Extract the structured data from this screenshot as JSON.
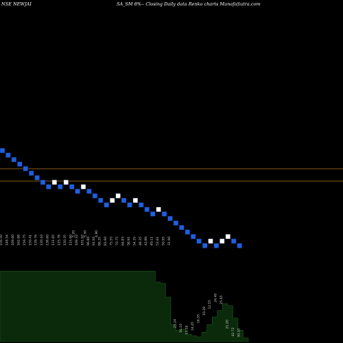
{
  "header": {
    "symbol": "NSE NEWJAI",
    "caption": "SA_SM 8%-- Closing Daily data Renko charts MunafaSutra.com"
  },
  "colors": {
    "background": "#000000",
    "up_brick": "#ffffff",
    "down_brick": "#1f5fe0",
    "brick_border": "#0a1a3a",
    "reference_line": "#8a5a10",
    "volume_fill": "#0b2a0b",
    "volume_edge": "#1a5a1a",
    "label": "#cfcfcf"
  },
  "chart_data": {
    "type": "renko",
    "title": "SA_SM 8%-- Closing Daily data Renko charts MunafaSutra.com",
    "bricks": [
      "down",
      "down",
      "down",
      "down",
      "down",
      "down",
      "down",
      "down",
      "down",
      "up",
      "down",
      "up",
      "down",
      "down",
      "up",
      "down",
      "down",
      "down",
      "down",
      "up",
      "up",
      "down",
      "down",
      "up",
      "down",
      "down",
      "down",
      "up",
      "down",
      "down",
      "down",
      "down",
      "down",
      "down",
      "down",
      "down",
      "up",
      "down",
      "up",
      "up",
      "down",
      "down"
    ],
    "reference_lines": [
      "upper",
      "lower"
    ],
    "volume_labels": [
      "156.50",
      "148.54",
      "169.60",
      "162.68",
      "156.75",
      "150.41",
      "139.76",
      "130.10",
      "138.60",
      "131.65",
      "125.78",
      "120.35",
      "115.60",
      "109.33",
      "101.92",
      "96.80",
      "91.92",
      "86.35",
      "81.60",
      "75.55",
      "70.75",
      "64.83",
      "58.91",
      "54.35",
      "48.35",
      "42.86",
      "49.11",
      "52.61",
      "50.95",
      "31.90",
      "23.24",
      "16.10",
      "12.19",
      "14.45",
      "16.55",
      "10.29",
      "12.55",
      "24.40",
      "25.65",
      "21.20",
      "42.72",
      "30.10"
    ],
    "volume_labels_raised": {
      "12": "5.20",
      "14": "5.30",
      "16": "4.90"
    },
    "volume_levels": [
      0.745,
      0.745,
      0.745,
      0.745,
      0.745,
      0.745,
      0.745,
      0.745,
      0.745,
      0.745,
      0.745,
      0.745,
      0.745,
      0.745,
      0.745,
      0.745,
      0.745,
      0.745,
      0.745,
      0.745,
      0.745,
      0.745,
      0.745,
      0.745,
      0.745,
      0.745,
      0.745,
      0.745,
      0.745,
      0.745,
      0.63,
      0.615,
      0.47,
      0.18,
      0.12,
      0.13,
      0.08,
      0.06,
      0.05,
      0.1,
      0.18,
      0.26,
      0.33,
      0.4,
      0.38,
      0.25,
      0.12,
      0.04,
      0.03
    ]
  }
}
